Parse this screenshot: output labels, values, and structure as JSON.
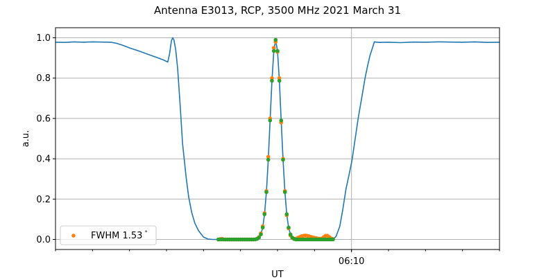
{
  "chart_data": {
    "type": "line",
    "title": "Antenna E3013, RCP, 3500 MHz 2021 March 31",
    "xlabel": "UT",
    "ylabel": "a.u.",
    "xlim": [
      "06:02:00",
      "06:14:00"
    ],
    "ylim": [
      -0.05,
      1.05
    ],
    "x_major_ticks": [
      "06:10"
    ],
    "x_minor_tick_interval": "1 min",
    "y_ticks": [
      "0.0",
      "0.2",
      "0.4",
      "0.6",
      "0.8",
      "1.0"
    ],
    "grid": true,
    "legend": {
      "placement": "lower-left",
      "entries": [
        {
          "label": "FWHM 1.53",
          "unit": "°",
          "color": "#ff7f0e"
        }
      ]
    },
    "series": [
      {
        "kind": "line",
        "color": "#1f77b4",
        "x": [
          "06:02:00",
          "06:02:15",
          "06:02:30",
          "06:02:45",
          "06:03:00",
          "06:03:15",
          "06:03:30",
          "06:03:40",
          "06:03:50",
          "06:04:00",
          "06:04:15",
          "06:04:30",
          "06:04:45",
          "06:04:55",
          "06:05:02",
          "06:05:05",
          "06:05:08",
          "06:05:10",
          "06:05:12",
          "06:05:15",
          "06:05:18",
          "06:05:22",
          "06:05:26",
          "06:05:32",
          "06:05:36",
          "06:05:41",
          "06:05:46",
          "06:05:52",
          "06:06:00",
          "06:06:07",
          "06:06:15",
          "06:07:24",
          "06:07:27",
          "06:07:30",
          "06:07:33",
          "06:07:36",
          "06:07:39",
          "06:07:42",
          "06:07:45",
          "06:07:48",
          "06:07:51",
          "06:07:54",
          "06:07:57",
          "06:08:00",
          "06:08:03",
          "06:08:06",
          "06:08:09",
          "06:08:12",
          "06:08:15",
          "06:08:18",
          "06:08:21",
          "06:08:24",
          "06:08:27",
          "06:08:30",
          "06:09:30",
          "06:09:35",
          "06:09:41",
          "06:09:46",
          "06:09:51",
          "06:09:56",
          "06:10:01",
          "06:10:06",
          "06:10:11",
          "06:10:17",
          "06:10:22",
          "06:10:26",
          "06:10:30",
          "06:10:34",
          "06:10:37",
          "06:10:45",
          "06:11:00",
          "06:11:20",
          "06:11:40",
          "06:12:00",
          "06:12:20",
          "06:12:40",
          "06:13:00",
          "06:13:20",
          "06:13:40",
          "06:14:00"
        ],
        "y": [
          0.978,
          0.977,
          0.98,
          0.978,
          0.98,
          0.979,
          0.978,
          0.972,
          0.962,
          0.95,
          0.935,
          0.918,
          0.902,
          0.89,
          0.88,
          0.92,
          0.985,
          1.0,
          0.99,
          0.94,
          0.85,
          0.67,
          0.477,
          0.305,
          0.21,
          0.133,
          0.08,
          0.043,
          0.012,
          0.002,
          0,
          0,
          0.003,
          0.009,
          0.025,
          0.059,
          0.125,
          0.235,
          0.395,
          0.59,
          0.787,
          0.935,
          0.99,
          0.935,
          0.787,
          0.59,
          0.395,
          0.235,
          0.125,
          0.059,
          0.025,
          0.009,
          0.003,
          0,
          0,
          0.015,
          0.065,
          0.15,
          0.25,
          0.32,
          0.397,
          0.5,
          0.603,
          0.71,
          0.8,
          0.86,
          0.912,
          0.95,
          0.98,
          0.977,
          0.978,
          0.976,
          0.979,
          0.978,
          0.98,
          0.979,
          0.978,
          0.98,
          0.977,
          0.978
        ]
      },
      {
        "kind": "scatter",
        "name": "FWHM 1.53",
        "color": "#ff7f0e",
        "x": [
          "06:06:24",
          "06:06:27",
          "06:06:30",
          "06:06:33",
          "06:06:36",
          "06:06:39",
          "06:06:42",
          "06:06:45",
          "06:06:48",
          "06:06:51",
          "06:06:54",
          "06:06:57",
          "06:07:00",
          "06:07:03",
          "06:07:06",
          "06:07:09",
          "06:07:12",
          "06:07:15",
          "06:07:18",
          "06:07:21",
          "06:07:24",
          "06:07:27",
          "06:07:30",
          "06:07:33",
          "06:07:36",
          "06:07:39",
          "06:07:42",
          "06:07:45",
          "06:07:48",
          "06:07:51",
          "06:07:54",
          "06:07:57",
          "06:08:00",
          "06:08:03",
          "06:08:06",
          "06:08:09",
          "06:08:12",
          "06:08:15",
          "06:08:18",
          "06:08:21",
          "06:08:24",
          "06:08:27",
          "06:08:30",
          "06:08:33",
          "06:08:36",
          "06:08:39",
          "06:08:42",
          "06:08:45",
          "06:08:48",
          "06:08:51",
          "06:08:54",
          "06:08:57",
          "06:09:00",
          "06:09:03",
          "06:09:06",
          "06:09:09",
          "06:09:12",
          "06:09:15",
          "06:09:18",
          "06:09:21",
          "06:09:24",
          "06:09:27",
          "06:09:30"
        ],
        "y": [
          0,
          0.002,
          0.003,
          0,
          0,
          0,
          0,
          0,
          0,
          0,
          0,
          0,
          0,
          0,
          0,
          0,
          0,
          0,
          0,
          0,
          0.001,
          0.004,
          0.012,
          0.03,
          0.065,
          0.13,
          0.24,
          0.41,
          0.6,
          0.8,
          0.95,
          0.98,
          0.93,
          0.8,
          0.58,
          0.4,
          0.24,
          0.12,
          0.055,
          0.02,
          0.007,
          0.002,
          0.004,
          0.008,
          0.012,
          0.016,
          0.018,
          0.019,
          0.018,
          0.016,
          0.013,
          0.01,
          0.008,
          0.006,
          0.004,
          0.003,
          0.005,
          0.012,
          0.018,
          0.018,
          0.012,
          0.005,
          0.002
        ]
      },
      {
        "kind": "scatter",
        "color": "#2ca02c",
        "x": [
          "06:06:24",
          "06:06:27",
          "06:06:30",
          "06:06:33",
          "06:06:36",
          "06:06:39",
          "06:06:42",
          "06:06:45",
          "06:06:48",
          "06:06:51",
          "06:06:54",
          "06:06:57",
          "06:07:00",
          "06:07:03",
          "06:07:06",
          "06:07:09",
          "06:07:12",
          "06:07:15",
          "06:07:18",
          "06:07:21",
          "06:07:24",
          "06:07:27",
          "06:07:30",
          "06:07:33",
          "06:07:36",
          "06:07:39",
          "06:07:42",
          "06:07:45",
          "06:07:48",
          "06:07:51",
          "06:07:54",
          "06:07:57",
          "06:08:00",
          "06:08:03",
          "06:08:06",
          "06:08:09",
          "06:08:12",
          "06:08:15",
          "06:08:18",
          "06:08:21",
          "06:08:24",
          "06:08:27",
          "06:08:30",
          "06:08:33",
          "06:08:36",
          "06:08:39",
          "06:08:42",
          "06:08:45",
          "06:08:48",
          "06:08:51",
          "06:08:54",
          "06:08:57",
          "06:09:00",
          "06:09:03",
          "06:09:06",
          "06:09:09",
          "06:09:12",
          "06:09:15",
          "06:09:18",
          "06:09:21",
          "06:09:24",
          "06:09:27",
          "06:09:30"
        ],
        "y": [
          0,
          0,
          0,
          0,
          0,
          0,
          0,
          0,
          0,
          0,
          0,
          0,
          0,
          0,
          0,
          0,
          0,
          0,
          0,
          0,
          0,
          0.003,
          0.009,
          0.025,
          0.059,
          0.125,
          0.235,
          0.395,
          0.59,
          0.787,
          0.935,
          0.99,
          0.935,
          0.787,
          0.59,
          0.395,
          0.235,
          0.125,
          0.059,
          0.025,
          0.009,
          0.003,
          0,
          0,
          0,
          0,
          0,
          0,
          0,
          0,
          0,
          0,
          0,
          0,
          0,
          0,
          0,
          0,
          0,
          0,
          0,
          0,
          0
        ]
      }
    ]
  }
}
